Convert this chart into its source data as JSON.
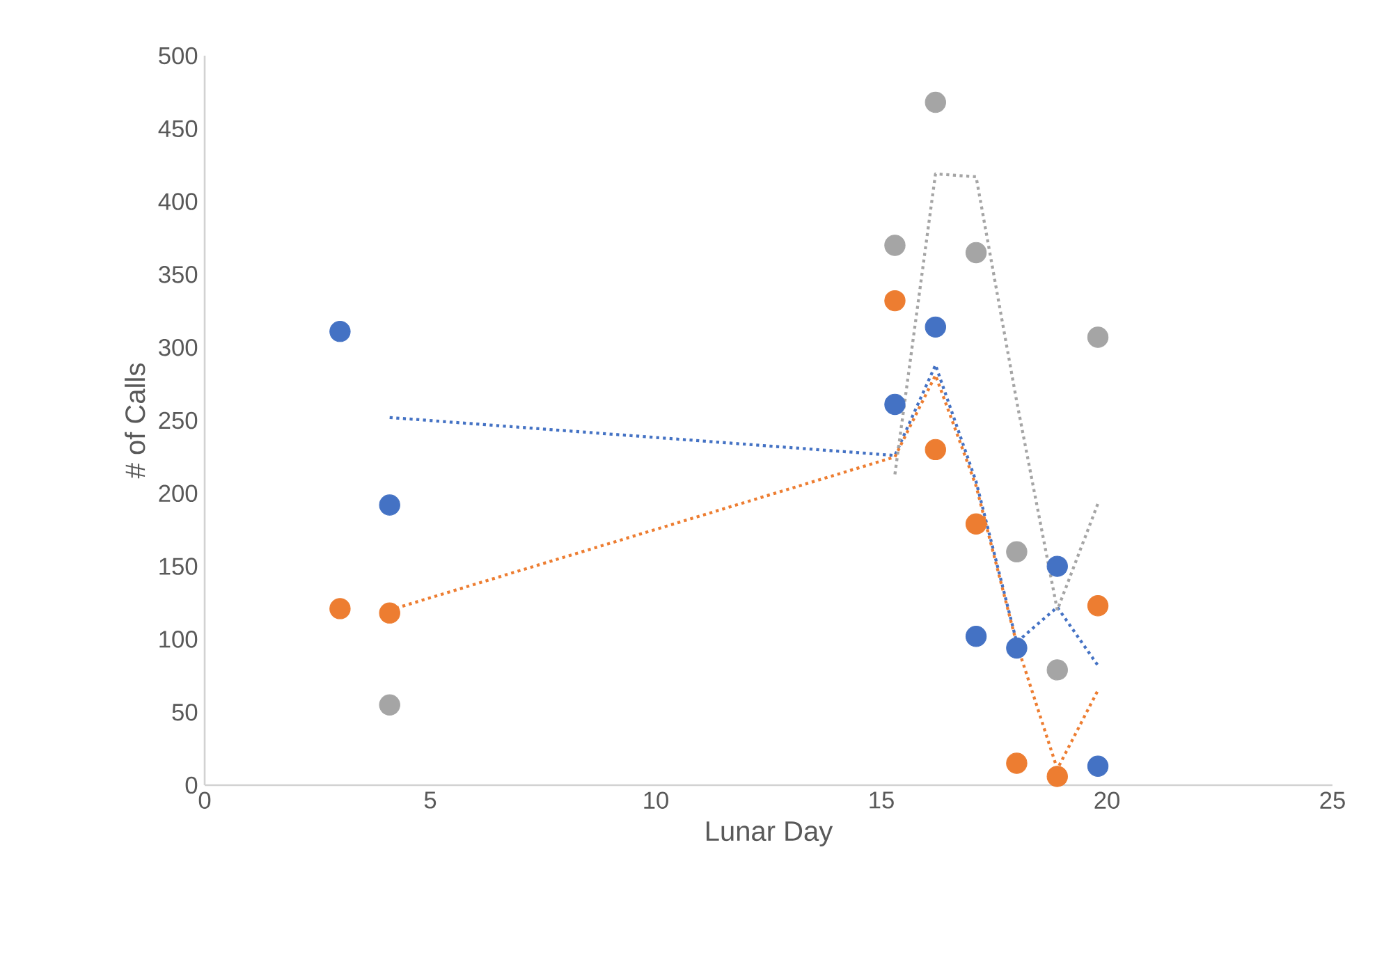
{
  "chart_data": {
    "type": "scatter",
    "xlabel": "Lunar Day",
    "ylabel": "# of Calls",
    "xlim": [
      0,
      25
    ],
    "ylim": [
      0,
      500
    ],
    "xticks": [
      0,
      5,
      10,
      15,
      20,
      25
    ],
    "yticks": [
      0,
      50,
      100,
      150,
      200,
      250,
      300,
      350,
      400,
      450,
      500
    ],
    "grid": false,
    "line_style": "dotted",
    "series": [
      {
        "marker": "circle",
        "color": "#4472c4",
        "x": [
          3,
          4.1,
          15.3,
          16.2,
          17.1,
          18,
          18.9,
          19.8
        ],
        "values": [
          311,
          192,
          261,
          314,
          102,
          94,
          150,
          13
        ]
      },
      {
        "marker": "circle",
        "color": "#ed7d31",
        "x": [
          3,
          4.1,
          15.3,
          16.2,
          17.1,
          18,
          18.9,
          19.8
        ],
        "values": [
          121,
          118,
          332,
          230,
          179,
          15,
          6,
          123
        ]
      },
      {
        "marker": "circle",
        "color": "#a5a5a5",
        "x": [
          4.1,
          15.3,
          16.2,
          17.1,
          18,
          18.9,
          19.8
        ],
        "values": [
          55,
          370,
          468,
          365,
          160,
          79,
          307
        ]
      },
      {
        "type": "line",
        "marker": "none",
        "color": "#4472c4",
        "x": [
          4.1,
          15.3,
          16.2,
          17.1,
          18,
          18.9,
          19.8
        ],
        "values": [
          252,
          226,
          288,
          208,
          98,
          122,
          82
        ]
      },
      {
        "type": "line",
        "marker": "none",
        "color": "#ed7d31",
        "x": [
          4.1,
          15.3,
          16.2,
          17.1,
          18,
          18.9,
          19.8
        ],
        "values": [
          120,
          225,
          281,
          205,
          97,
          11,
          65
        ]
      },
      {
        "type": "line",
        "marker": "none",
        "color": "#a5a5a5",
        "x": [
          15.3,
          16.2,
          17.1,
          18,
          18.9,
          19.8
        ],
        "values": [
          213,
          419,
          417,
          263,
          120,
          193
        ]
      }
    ]
  }
}
